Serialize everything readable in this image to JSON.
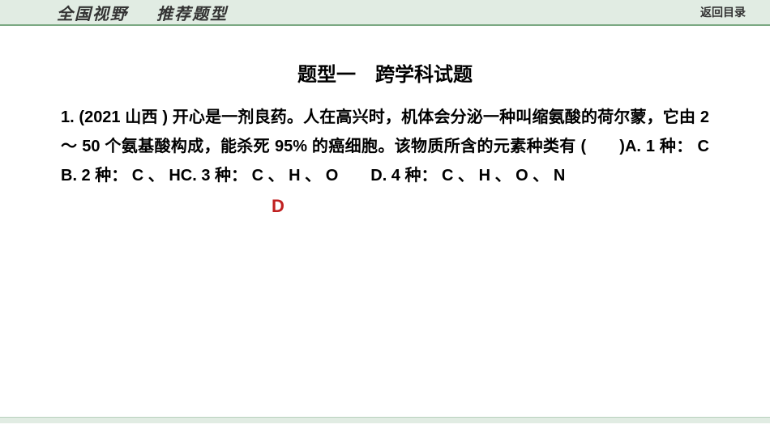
{
  "header": {
    "left_part1": "全国视野",
    "left_part2": "推荐题型",
    "back_label": "返回目录"
  },
  "section": {
    "title": "题型一　跨学科试题"
  },
  "question": {
    "full_text": "1. (2021 山西 ) 开心是一剂良药。人在高兴时，机体会分泌一种叫缩氨酸的荷尔蒙，它由 2 ～ 50 个氨基酸构成，能杀死 95% 的癌细胞。该物质所含的元素种类有 (　　)A. 1 种： C　　　　　　B. 2 种： C 、 HC. 3 种： C 、 H 、 O　　D. 4 种： C 、 H 、 O 、 N",
    "answer": "D"
  },
  "colors": {
    "header_bg": "#e1ece3",
    "header_border": "#7aa882",
    "text": "#000000",
    "answer": "#c02020",
    "footer_bg": "#e1ece3"
  }
}
